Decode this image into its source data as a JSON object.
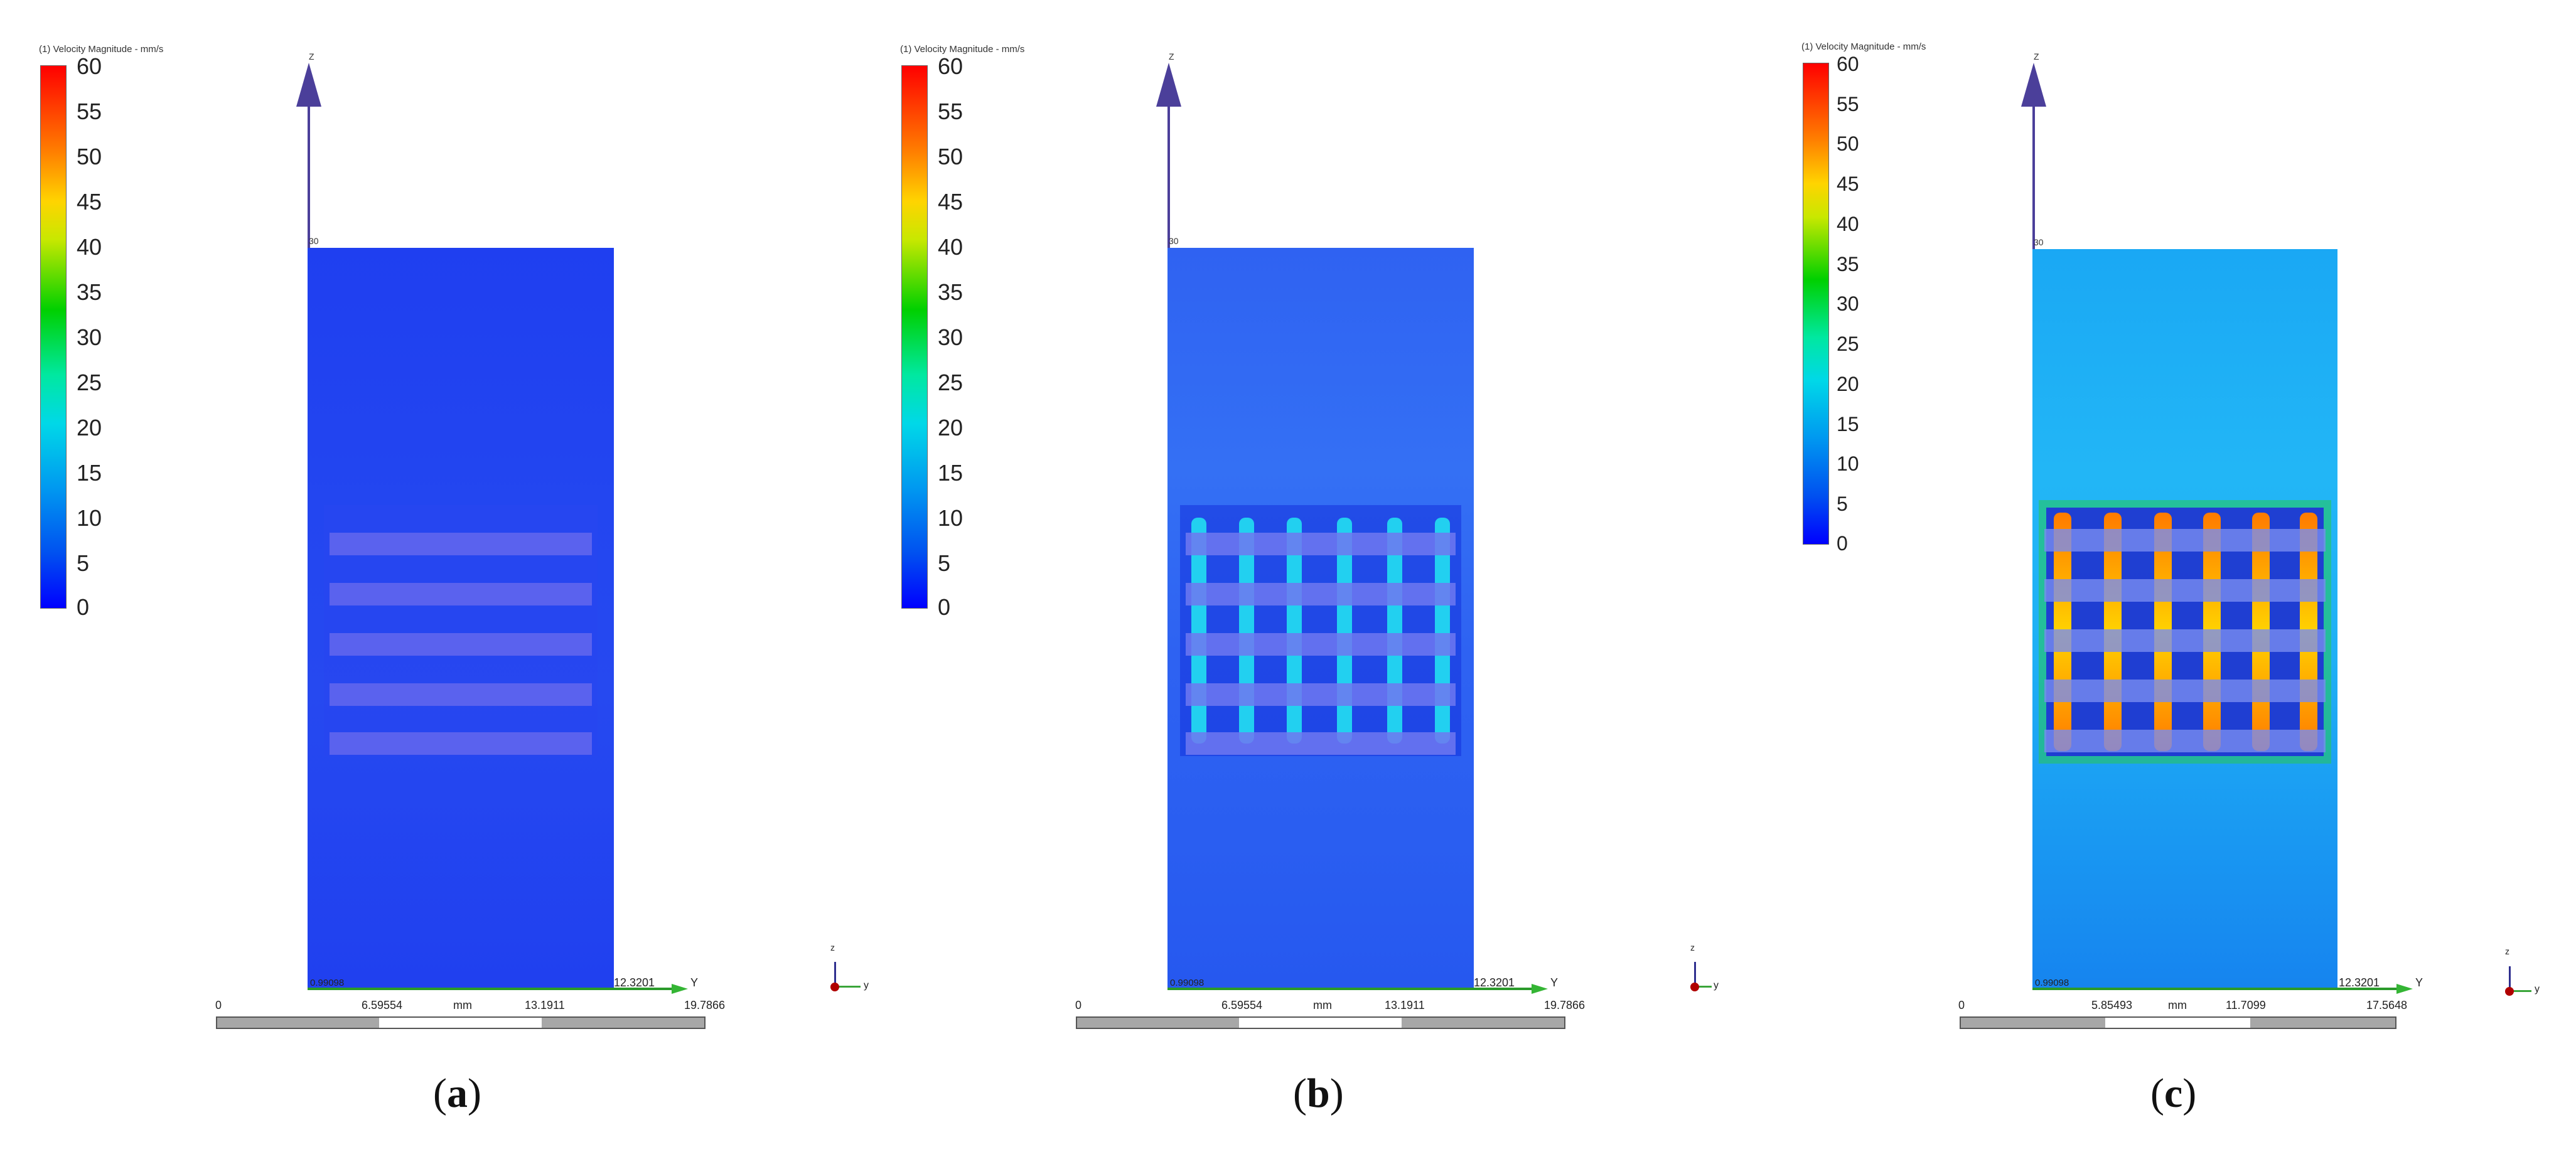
{
  "panels": [
    {
      "legend_title": "(1) Velocity Magnitude - mm/s",
      "ticks": [
        "60",
        "55",
        "50",
        "45",
        "40",
        "35",
        "30",
        "25",
        "20",
        "15",
        "10",
        "5",
        "0"
      ],
      "axis_z_label": "Z",
      "axis_z_top_value": "30",
      "axis_y_label": "Y",
      "axis_y_origin": "0.99098",
      "axis_y_end": "12.3201",
      "triad": {
        "z": "z",
        "y": "y"
      },
      "scale": {
        "unit": "mm",
        "labels": [
          "0",
          "6.59554",
          "13.1911",
          "19.7866"
        ]
      },
      "caption": {
        "open": "(",
        "letter": "a",
        "close": ")"
      },
      "field_level": "low"
    },
    {
      "legend_title": "(1) Velocity Magnitude - mm/s",
      "ticks": [
        "60",
        "55",
        "50",
        "45",
        "40",
        "35",
        "30",
        "25",
        "20",
        "15",
        "10",
        "5",
        "0"
      ],
      "axis_z_label": "Z",
      "axis_z_top_value": "30",
      "axis_y_label": "Y",
      "axis_y_origin": "0.99098",
      "axis_y_end": "12.3201",
      "triad": {
        "z": "z",
        "y": "y"
      },
      "scale": {
        "unit": "mm",
        "labels": [
          "0",
          "6.59554",
          "13.1911",
          "19.7866"
        ]
      },
      "caption": {
        "open": "(",
        "letter": "b",
        "close": ")"
      },
      "field_level": "medium"
    },
    {
      "legend_title": "(1) Velocity Magnitude - mm/s",
      "ticks": [
        "60",
        "55",
        "50",
        "45",
        "40",
        "35",
        "30",
        "25",
        "20",
        "15",
        "10",
        "5",
        "0"
      ],
      "axis_z_label": "Z",
      "axis_z_top_value": "30",
      "axis_y_label": "Y",
      "axis_y_origin": "0.99098",
      "axis_y_end": "12.3201",
      "triad": {
        "z": "z",
        "y": "y"
      },
      "scale": {
        "unit": "mm",
        "labels": [
          "0",
          "5.85493",
          "11.7099",
          "17.5648"
        ]
      },
      "caption": {
        "open": "(",
        "letter": "c",
        "close": ")"
      },
      "field_level": "high"
    }
  ]
}
